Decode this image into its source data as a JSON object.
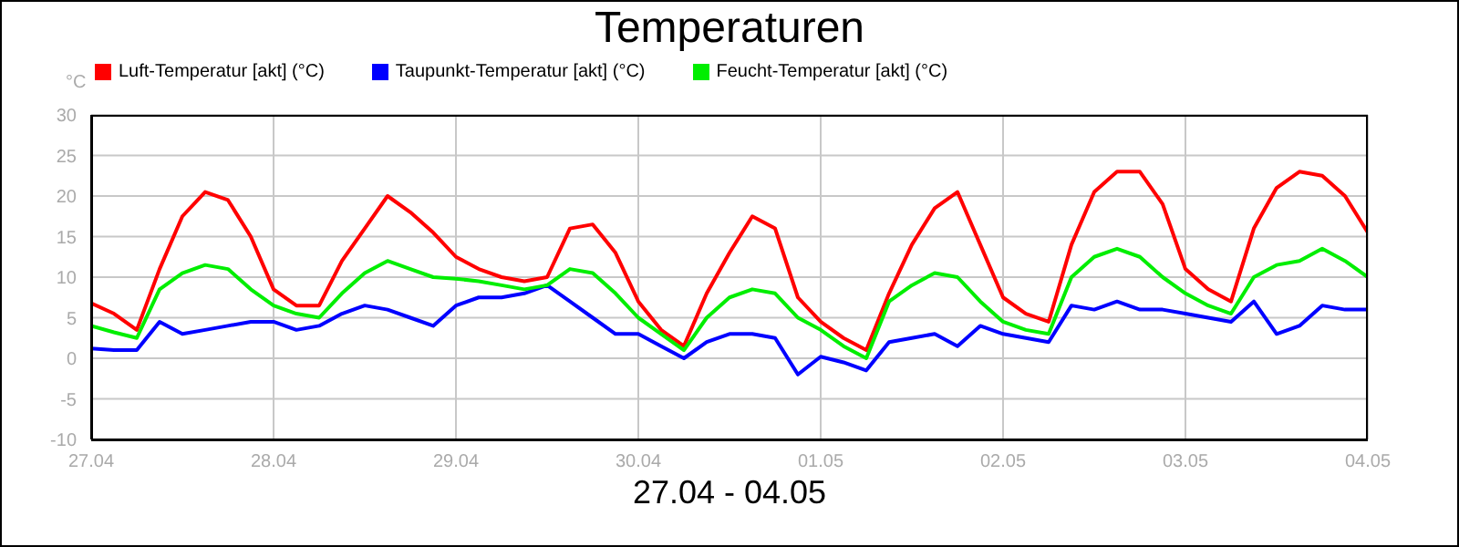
{
  "chart_data": {
    "type": "line",
    "title": "Temperaturen",
    "xlabel": "27.04 - 04.05",
    "ylabel": "°C",
    "x": [
      "--04-27T00:00",
      "--04-27T03:00",
      "--04-27T06:00",
      "--04-27T09:00",
      "--04-27T12:00",
      "--04-27T15:00",
      "--04-27T18:00",
      "--04-27T21:00",
      "--04-28T00:00",
      "--04-28T03:00",
      "--04-28T06:00",
      "--04-28T09:00",
      "--04-28T12:00",
      "--04-28T15:00",
      "--04-28T18:00",
      "--04-28T21:00",
      "--04-29T00:00",
      "--04-29T03:00",
      "--04-29T06:00",
      "--04-29T09:00",
      "--04-29T12:00",
      "--04-29T15:00",
      "--04-29T18:00",
      "--04-29T21:00",
      "--04-30T00:00",
      "--04-30T03:00",
      "--04-30T06:00",
      "--04-30T09:00",
      "--04-30T12:00",
      "--04-30T15:00",
      "--04-30T18:00",
      "--04-30T21:00",
      "--05-01T00:00",
      "--05-01T03:00",
      "--05-01T06:00",
      "--05-01T09:00",
      "--05-01T12:00",
      "--05-01T15:00",
      "--05-01T18:00",
      "--05-01T21:00",
      "--05-02T00:00",
      "--05-02T03:00",
      "--05-02T06:00",
      "--05-02T09:00",
      "--05-02T12:00",
      "--05-02T15:00",
      "--05-02T18:00",
      "--05-02T21:00",
      "--05-03T00:00",
      "--05-03T03:00",
      "--05-03T06:00",
      "--05-03T09:00",
      "--05-03T12:00",
      "--05-03T15:00",
      "--05-03T18:00",
      "--05-03T21:00",
      "--05-04T00:00"
    ],
    "series": [
      {
        "name": "Luft-Temperatur [akt] (°C)",
        "color": "#ff0000",
        "values": [
          6.8,
          5.5,
          3.5,
          11,
          17.5,
          20.5,
          19.5,
          15,
          8.5,
          6.5,
          6.5,
          12,
          16,
          20,
          18,
          15.5,
          12.5,
          11,
          10,
          9.5,
          10,
          16,
          16.5,
          13,
          7,
          3.5,
          1.5,
          8,
          13,
          17.5,
          16,
          7.5,
          4.5,
          2.5,
          1,
          8,
          14,
          18.5,
          20.5,
          14,
          7.5,
          5.5,
          4.5,
          14,
          20.5,
          23,
          23,
          19,
          11,
          8.5,
          7,
          16,
          21,
          23,
          22.5,
          20,
          15.5
        ]
      },
      {
        "name": "Taupunkt-Temperatur [akt] (°C)",
        "color": "#0000ff",
        "values": [
          1.2,
          1,
          1,
          4.5,
          3,
          3.5,
          4,
          4.5,
          4.5,
          3.5,
          4,
          5.5,
          6.5,
          6,
          5,
          4,
          6.5,
          7.5,
          7.5,
          8,
          9,
          7,
          5,
          3,
          3,
          1.5,
          0,
          2,
          3,
          3,
          2.5,
          -2,
          0.2,
          -0.5,
          -1.5,
          2,
          2.5,
          3,
          1.5,
          4,
          3,
          2.5,
          2,
          6.5,
          6,
          7,
          6,
          6,
          5.5,
          5,
          4.5,
          7,
          3,
          4,
          6.5,
          6,
          6
        ]
      },
      {
        "name": "Feucht-Temperatur [akt] (°C)",
        "color": "#00ee00",
        "values": [
          4,
          3.2,
          2.5,
          8.5,
          10.5,
          11.5,
          11,
          8.5,
          6.5,
          5.5,
          5,
          8,
          10.5,
          12,
          11,
          10,
          9.8,
          9.5,
          9,
          8.5,
          9,
          11,
          10.5,
          8,
          5,
          3,
          1,
          5,
          7.5,
          8.5,
          8,
          5,
          3.5,
          1.5,
          0,
          7,
          9,
          10.5,
          10,
          7,
          4.5,
          3.5,
          3,
          10,
          12.5,
          13.5,
          12.5,
          10,
          8,
          6.5,
          5.5,
          10,
          11.5,
          12,
          13.5,
          12,
          10
        ]
      }
    ],
    "xlim": [
      "--04-27",
      "--05-04"
    ],
    "xticks": [
      {
        "value": "--04-27",
        "label": "27.04"
      },
      {
        "value": "--04-28",
        "label": "28.04"
      },
      {
        "value": "--04-29",
        "label": "29.04"
      },
      {
        "value": "--04-30",
        "label": "30.04"
      },
      {
        "value": "--05-01",
        "label": "01.05"
      },
      {
        "value": "--05-02",
        "label": "02.05"
      },
      {
        "value": "--05-03",
        "label": "03.05"
      },
      {
        "value": "--05-04",
        "label": "04.05"
      }
    ],
    "ylim": [
      -10,
      30
    ],
    "yticks": [
      -10,
      -5,
      0,
      5,
      10,
      15,
      20,
      25,
      30
    ],
    "grid": true,
    "legend": "top left",
    "marker": "none",
    "line_style": "solid"
  }
}
